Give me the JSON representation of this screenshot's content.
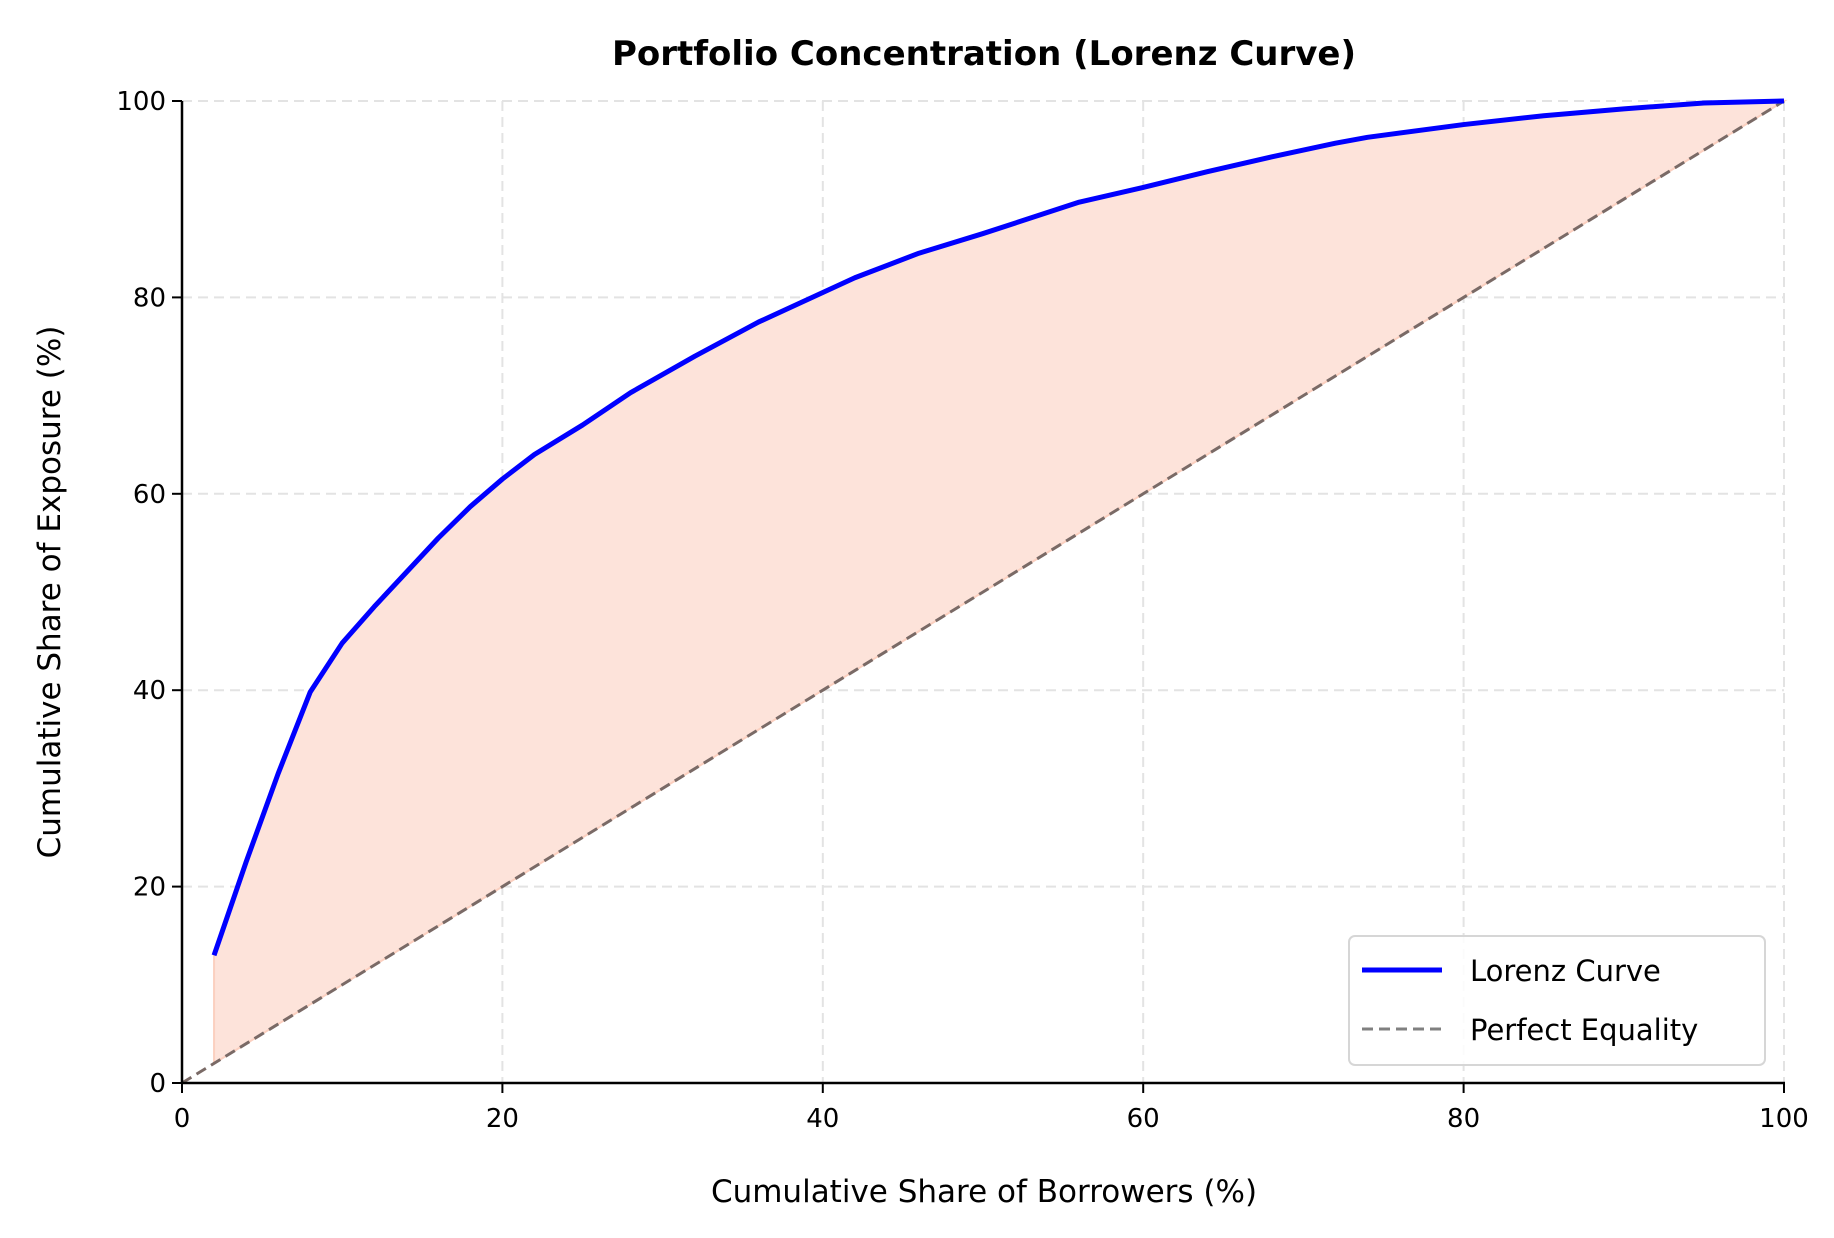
{
  "chart_data": {
    "type": "line",
    "title": "Portfolio Concentration (Lorenz Curve)",
    "xlabel": "Cumulative Share of Borrowers (%)",
    "ylabel": "Cumulative Share of Exposure (%)",
    "xlim": [
      0,
      100
    ],
    "ylim": [
      0,
      100
    ],
    "xticks": [
      0,
      20,
      40,
      60,
      80,
      100
    ],
    "yticks": [
      0,
      20,
      40,
      60,
      80,
      100
    ],
    "grid": true,
    "legend_position": "lower right",
    "series": [
      {
        "name": "Lorenz Curve",
        "color": "#0000ff",
        "style": "solid",
        "x": [
          2,
          4,
          6,
          8,
          10,
          12,
          14,
          16,
          18,
          20,
          22,
          25,
          28,
          32,
          36,
          40,
          42,
          46,
          50,
          56,
          60,
          64,
          68,
          72,
          74,
          80,
          85,
          90,
          95,
          100
        ],
        "y": [
          13,
          22.5,
          31.5,
          39.8,
          44.8,
          48.5,
          52,
          55.5,
          58.7,
          61.5,
          64,
          67,
          70.3,
          74,
          77.5,
          80.5,
          82,
          84.5,
          86.5,
          89.7,
          91.2,
          92.8,
          94.3,
          95.7,
          96.3,
          97.6,
          98.5,
          99.2,
          99.8,
          100
        ]
      },
      {
        "name": "Perfect Equality",
        "color": "#808080",
        "style": "dashed",
        "x": [
          0,
          100
        ],
        "y": [
          0,
          100
        ]
      }
    ],
    "fill_between": {
      "between": [
        "Lorenz Curve",
        "Perfect Equality"
      ],
      "color": "#fde3da"
    }
  },
  "legend": {
    "items": [
      {
        "label": "Lorenz Curve",
        "color": "#0000ff",
        "style": "solid"
      },
      {
        "label": "Perfect Equality",
        "color": "#808080",
        "style": "dashed"
      }
    ]
  }
}
